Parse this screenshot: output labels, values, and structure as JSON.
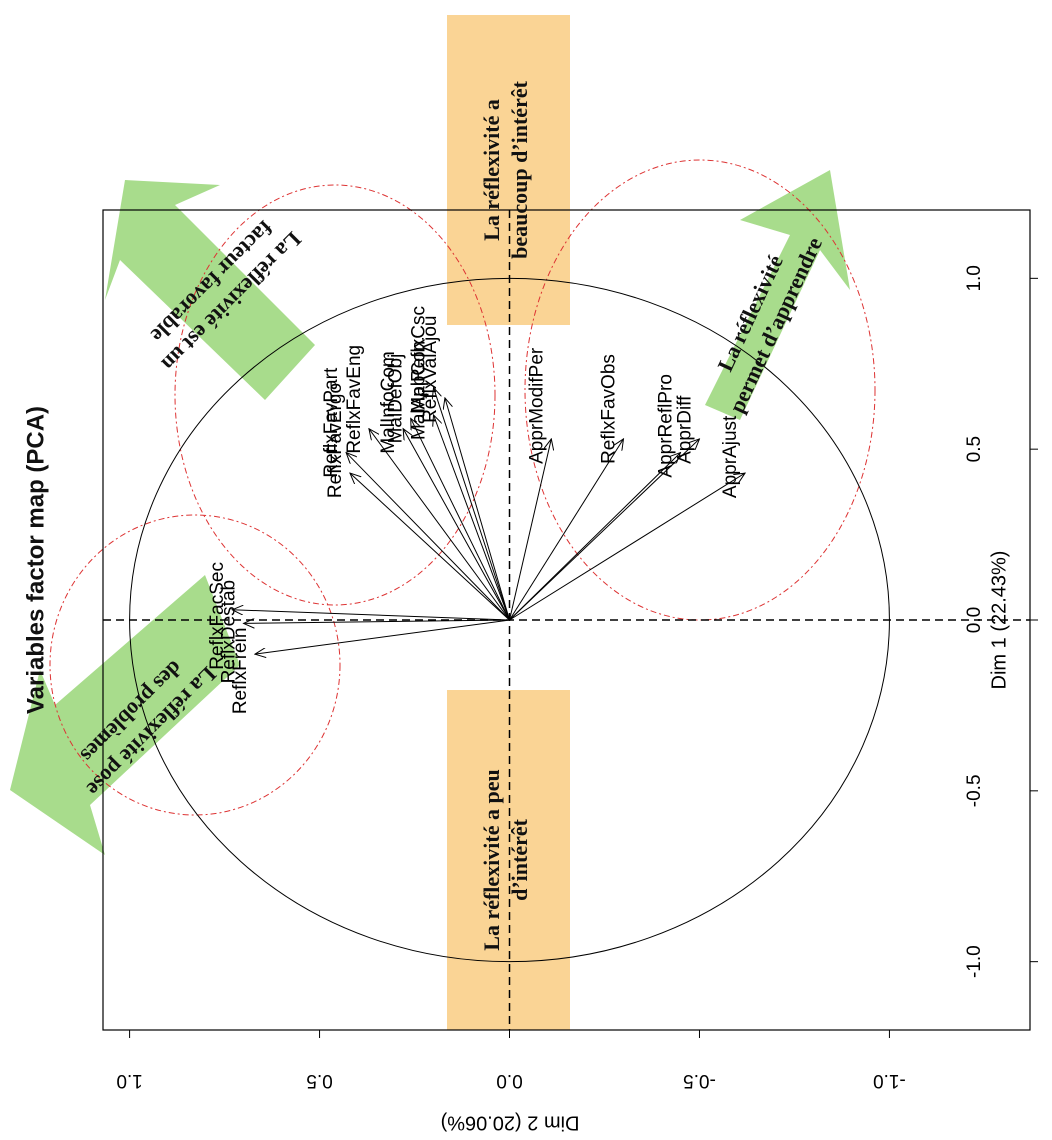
{
  "chart_data": {
    "type": "pca-variables",
    "title": "Variables factor map (PCA)",
    "xlabel": "Dim 1 (22.43%)",
    "ylabel": "Dim 2 (20.06%)",
    "labels": [
      "ReflxFacSec",
      "ReflxDestab",
      "ReflxFrein",
      "ReflxFavErgo",
      "ReflxFavPart",
      "ReflxFavEng",
      "MalDefObj",
      "MalInfoCom",
      "MalAppCon",
      "MalReflxCsc",
      "ReflxValAjou",
      "ApprModifPer",
      "ReflxFavObs",
      "ApprDiff",
      "ApprReflPro",
      "ApprAjust"
    ],
    "x": [
      0.03,
      -0.01,
      -0.1,
      0.43,
      0.49,
      0.56,
      0.59,
      0.56,
      0.6,
      0.68,
      0.65,
      0.53,
      0.53,
      0.53,
      0.49,
      0.43
    ],
    "y": [
      0.73,
      0.7,
      0.67,
      0.42,
      0.43,
      0.37,
      0.26,
      0.28,
      0.2,
      0.2,
      0.17,
      -0.11,
      -0.3,
      -0.5,
      -0.45,
      -0.62
    ],
    "xlim": [
      -1.2,
      1.2
    ],
    "ylim": [
      -1.37,
      1.07
    ],
    "xticks": [
      {
        "value": -1,
        "label": "-1.0"
      },
      {
        "value": -0.5,
        "label": "-0.5"
      },
      {
        "value": 0,
        "label": "0.0"
      },
      {
        "value": 0.5,
        "label": "0.5"
      },
      {
        "value": 1,
        "label": "1.0"
      }
    ],
    "yticks": [
      {
        "value": -1,
        "label": "-1.0"
      },
      {
        "value": -0.5,
        "label": "-0.5"
      },
      {
        "value": 0,
        "label": "0.0"
      },
      {
        "value": 0.5,
        "label": "0.5"
      },
      {
        "value": 1,
        "label": "1.0"
      }
    ],
    "annotations": [
      [
        "La réflexivité a",
        "beaucoup d’intérêt"
      ],
      [
        "La réflexivité a peu",
        "d’intérêt"
      ],
      [
        "La réflexivité est un",
        "facteur favorable"
      ],
      [
        "La réflexivité",
        "permet d’apprendre"
      ],
      [
        "La réflexivité pose",
        "des problèmes"
      ]
    ]
  }
}
